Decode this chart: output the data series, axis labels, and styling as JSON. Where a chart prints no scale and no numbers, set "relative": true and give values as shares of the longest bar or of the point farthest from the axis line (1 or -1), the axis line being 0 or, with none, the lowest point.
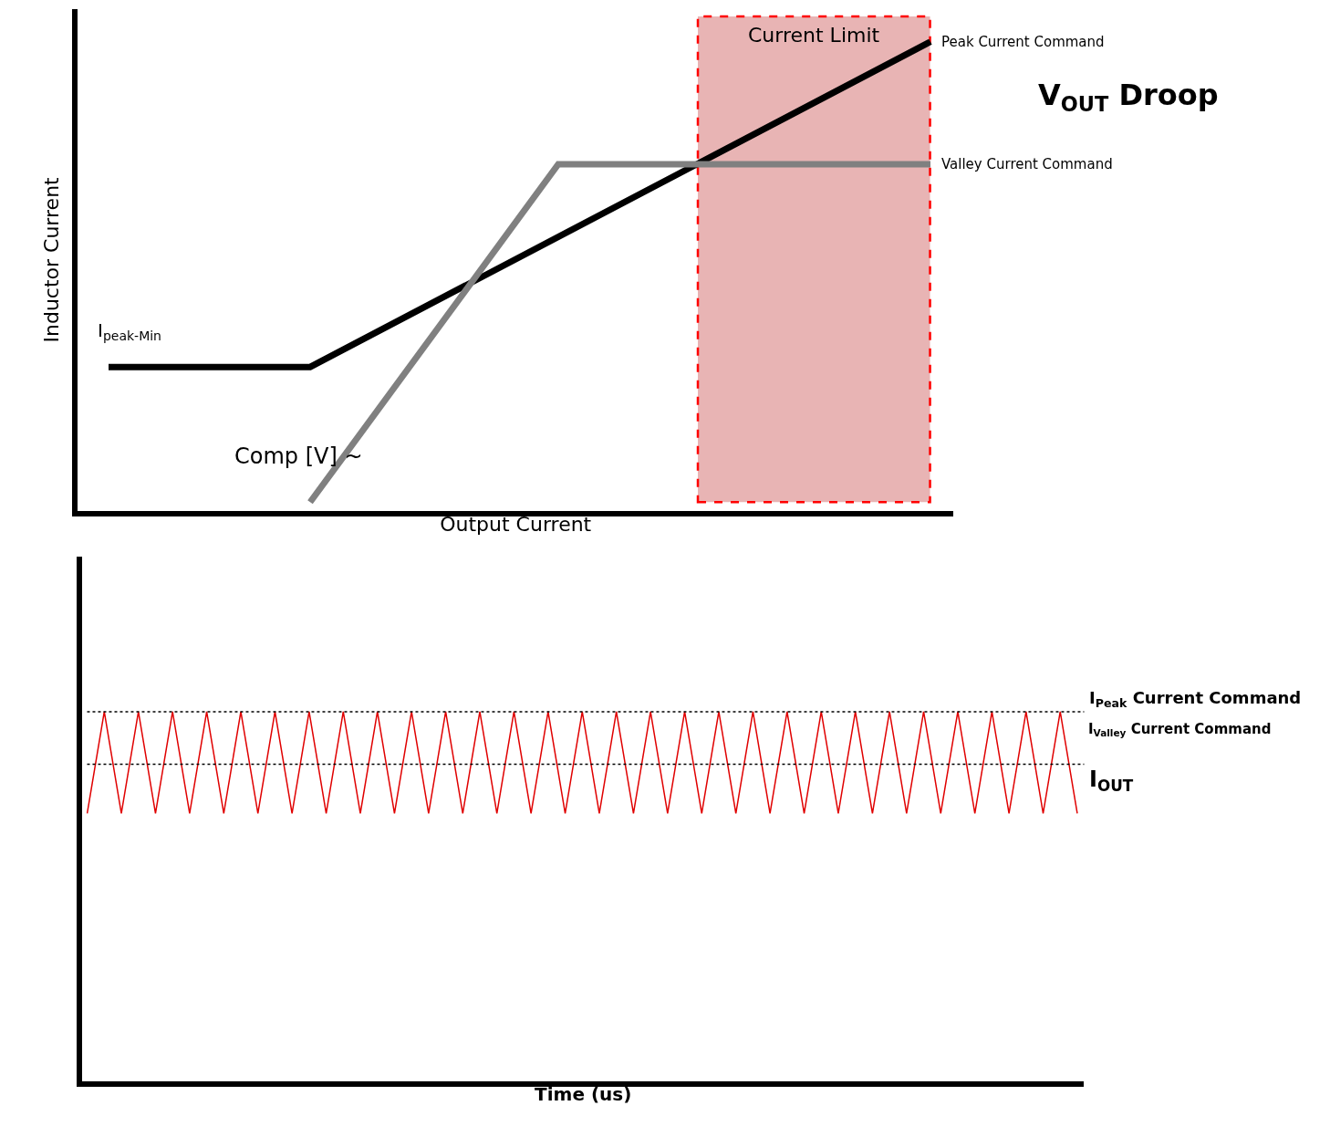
{
  "chart_data": [
    {
      "type": "line",
      "relative": true,
      "xlabel": "Output Current",
      "ylabel": "Inductor Current",
      "grid": false,
      "legend": false,
      "tick_labels": false,
      "categories": [
        null,
        null,
        null,
        null,
        null,
        null,
        null,
        null,
        null,
        null,
        null,
        null,
        null,
        null,
        null,
        null,
        null,
        null,
        null,
        null,
        null,
        null,
        null,
        null,
        null,
        null,
        null,
        null,
        null,
        null,
        null,
        null,
        null,
        null,
        null,
        null,
        null,
        null,
        null,
        null,
        null,
        null,
        null,
        null,
        null,
        null,
        null,
        null,
        null,
        null,
        null,
        null,
        null,
        null,
        null,
        null
      ],
      "series": [
        {
          "name": "Peak Current Command",
          "color": "#000000",
          "values": [
            null,
            null,
            0.307,
            null,
            null,
            null,
            null,
            null,
            null,
            null,
            null,
            null,
            null,
            null,
            null,
            0.307,
            null,
            null,
            null,
            null,
            null,
            null,
            null,
            null,
            null,
            null,
            null,
            null,
            null,
            null,
            null,
            null,
            null,
            null,
            null,
            null,
            null,
            null,
            null,
            null,
            null,
            null,
            null,
            null,
            null,
            null,
            null,
            null,
            null,
            null,
            null,
            null,
            null,
            null,
            null,
            1
          ]
        },
        {
          "name": "Valley Current Command",
          "color": "#808080",
          "values": [
            null,
            null,
            null,
            null,
            null,
            null,
            null,
            null,
            null,
            null,
            null,
            null,
            null,
            null,
            null,
            0.019,
            null,
            null,
            null,
            null,
            null,
            null,
            null,
            null,
            null,
            null,
            null,
            null,
            null,
            null,
            null,
            0.739,
            null,
            null,
            null,
            null,
            null,
            null,
            null,
            null,
            null,
            null,
            null,
            null,
            null,
            null,
            null,
            null,
            null,
            null,
            null,
            null,
            null,
            null,
            null,
            0.739
          ]
        }
      ],
      "annotations": [
        "I$_{peak-Min}$",
        "Comp [V] ~",
        "V$_{OUT}$ Droop",
        "Current Limit"
      ]
    },
    {
      "type": "line",
      "relative": true,
      "xlabel": "Time (us)",
      "grid": false,
      "legend": false,
      "tick_labels": false,
      "categories": [
        null,
        null,
        null,
        null,
        null,
        null,
        null,
        null,
        null,
        null,
        null,
        null,
        null,
        null,
        null,
        null,
        null,
        null,
        null,
        null,
        null,
        null,
        null,
        null,
        null,
        null,
        null,
        null,
        null,
        null,
        null,
        null,
        null,
        null,
        null,
        null,
        null,
        null,
        null,
        null,
        null,
        null,
        null,
        null,
        null,
        null,
        null,
        null,
        null,
        null,
        null,
        null,
        null,
        null,
        null,
        null,
        null,
        null,
        null
      ],
      "series": [
        {
          "color": "#e00000",
          "values": [
            0.725,
            1,
            0.725,
            1,
            0.725,
            1,
            0.725,
            1,
            0.725,
            1,
            0.725,
            1,
            0.725,
            1,
            0.725,
            1,
            0.725,
            1,
            0.725,
            1,
            0.725,
            1,
            0.725,
            1,
            0.725,
            1,
            0.725,
            1,
            0.725,
            1,
            0.725,
            1,
            0.725,
            1,
            0.725,
            1,
            0.725,
            1,
            0.725,
            1,
            0.725,
            1,
            0.725,
            1,
            0.725,
            1,
            0.725,
            1,
            0.725,
            1,
            0.725,
            1,
            0.725,
            1,
            0.725,
            1,
            0.725,
            1,
            0.725
          ]
        }
      ],
      "ref_lines": [
        {
          "axis": "y",
          "value": 1,
          "label": "I$_{Peak}$ Current Command",
          "color": "#000000",
          "line_style": "dotted"
        },
        {
          "axis": "y",
          "value": 0.858,
          "label": "I$_{OUT}$",
          "color": "#000000",
          "line_style": "dotted"
        }
      ],
      "annotations": [
        "I$_{Valley}$ Current Command"
      ]
    }
  ]
}
